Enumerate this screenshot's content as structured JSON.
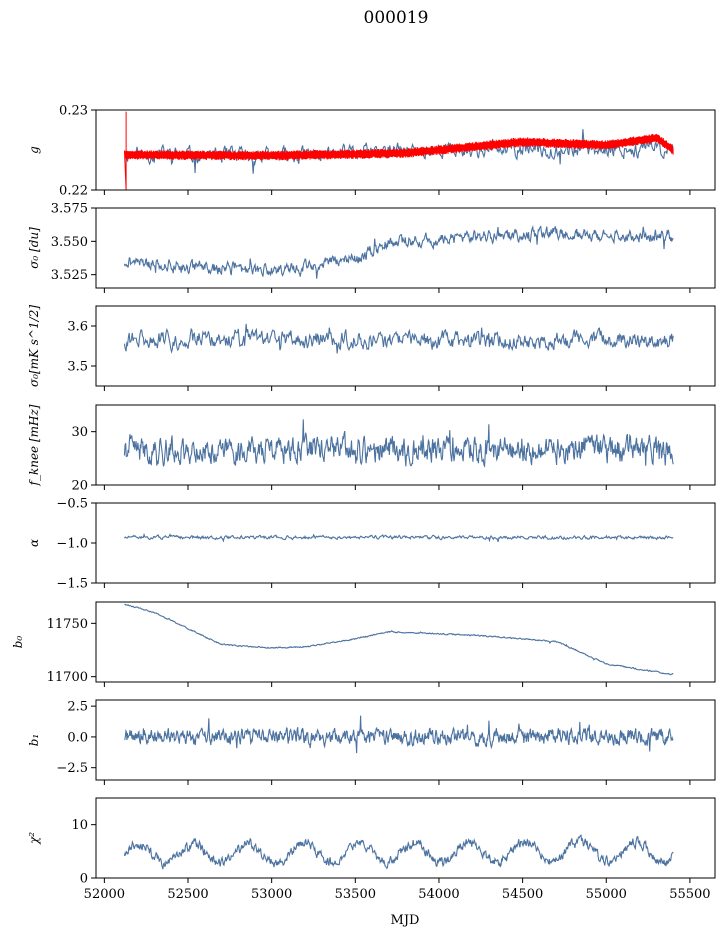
{
  "title": "000019",
  "chart_data": {
    "type": "line",
    "suptitle": "000019",
    "shared_x": {
      "label": "MJD",
      "xlim": [
        51950,
        55650
      ],
      "ticks": [
        52000,
        52500,
        53000,
        53500,
        54000,
        54500,
        55000,
        55500
      ],
      "data_range": [
        52120,
        55400
      ]
    },
    "panels": [
      {
        "ylabel": "g",
        "ylim": [
          0.22,
          0.23
        ],
        "yticks": [
          {
            "v": 0.22,
            "label": "0.22"
          },
          {
            "v": 0.23,
            "label": "0.23"
          }
        ],
        "series": [
          {
            "kind": "noise",
            "color": "#4c72a0",
            "base": [
              [
                52120,
                0.2245
              ],
              [
                53000,
                0.2242
              ],
              [
                54000,
                0.225
              ],
              [
                55400,
                0.2252
              ]
            ],
            "amp": 0.0013,
            "points": 700,
            "seed": 11
          },
          {
            "kind": "band",
            "color": "#ff0000",
            "base": [
              [
                52120,
                0.2244
              ],
              [
                53000,
                0.2243
              ],
              [
                53800,
                0.2246
              ],
              [
                54500,
                0.226
              ],
              [
                55000,
                0.2256
              ],
              [
                55300,
                0.2265
              ],
              [
                55400,
                0.225
              ]
            ],
            "amp": 0.0006,
            "points": 1400,
            "seed": 5,
            "spike": {
              "x": 52130,
              "y_top": 0.2298,
              "y_bottom": 0.22
            }
          }
        ]
      },
      {
        "ylabel": "σ₀ [du]",
        "ylim": [
          3.515,
          3.575
        ],
        "yticks": [
          {
            "v": 3.525,
            "label": "3.525"
          },
          {
            "v": 3.55,
            "label": "3.550"
          },
          {
            "v": 3.575,
            "label": "3.575"
          }
        ],
        "series": [
          {
            "kind": "noise",
            "color": "#4c72a0",
            "base": [
              [
                52120,
                3.535
              ],
              [
                52500,
                3.531
              ],
              [
                53000,
                3.528
              ],
              [
                53500,
                3.537
              ],
              [
                53700,
                3.549
              ],
              [
                54200,
                3.553
              ],
              [
                54700,
                3.556
              ],
              [
                55000,
                3.553
              ],
              [
                55400,
                3.555
              ]
            ],
            "amp": 0.006,
            "points": 900,
            "seed": 21
          }
        ]
      },
      {
        "ylabel": "σ₀[mK s^1/2]",
        "ylim": [
          3.45,
          3.65
        ],
        "yticks": [
          {
            "v": 3.5,
            "label": "3.5"
          },
          {
            "v": 3.6,
            "label": "3.6"
          }
        ],
        "series": [
          {
            "kind": "noise",
            "color": "#4c72a0",
            "base": [
              [
                52120,
                3.565
              ],
              [
                55400,
                3.565
              ]
            ],
            "amp": 0.03,
            "points": 700,
            "seed": 31
          }
        ]
      },
      {
        "ylabel": "f_knee [mHz]",
        "ylim": [
          20,
          35
        ],
        "yticks": [
          {
            "v": 20,
            "label": "20"
          },
          {
            "v": 30,
            "label": "30"
          }
        ],
        "series": [
          {
            "kind": "noise",
            "color": "#4c72a0",
            "base": [
              [
                52120,
                26.5
              ],
              [
                55400,
                26.5
              ]
            ],
            "amp": 3.2,
            "points": 900,
            "seed": 41
          }
        ]
      },
      {
        "ylabel": "α",
        "ylim": [
          -1.5,
          -0.5
        ],
        "yticks": [
          {
            "v": -1.5,
            "label": "−1.5"
          },
          {
            "v": -1.0,
            "label": "−1.0"
          },
          {
            "v": -0.5,
            "label": "−0.5"
          }
        ],
        "series": [
          {
            "kind": "noise",
            "color": "#4c72a0",
            "base": [
              [
                52120,
                -0.93
              ],
              [
                55400,
                -0.93
              ]
            ],
            "amp": 0.03,
            "points": 700,
            "seed": 51
          }
        ]
      },
      {
        "ylabel": "b₀",
        "ylim": [
          11695,
          11770
        ],
        "yticks": [
          {
            "v": 11700,
            "label": "11700"
          },
          {
            "v": 11750,
            "label": "11750"
          }
        ],
        "series": [
          {
            "kind": "noise",
            "color": "#4c72a0",
            "base": [
              [
                52120,
                11768
              ],
              [
                52300,
                11760
              ],
              [
                52700,
                11730
              ],
              [
                53000,
                11727
              ],
              [
                53200,
                11728
              ],
              [
                53450,
                11734
              ],
              [
                53700,
                11742
              ],
              [
                54200,
                11739
              ],
              [
                54700,
                11733
              ],
              [
                55000,
                11712
              ],
              [
                55400,
                11702
              ]
            ],
            "amp": 0.8,
            "points": 900,
            "seed": 61
          }
        ]
      },
      {
        "ylabel": "b₁",
        "ylim": [
          -3.5,
          3.0
        ],
        "yticks": [
          {
            "v": -2.5,
            "label": "−2.5"
          },
          {
            "v": 0.0,
            "label": "0.0"
          },
          {
            "v": 2.5,
            "label": "2.5"
          }
        ],
        "series": [
          {
            "kind": "noise",
            "color": "#4c72a0",
            "base": [
              [
                52120,
                0
              ],
              [
                55400,
                0
              ]
            ],
            "amp": 0.8,
            "points": 1100,
            "seed": 71
          }
        ]
      },
      {
        "ylabel": "χ²",
        "ylim": [
          0,
          15
        ],
        "yticks": [
          {
            "v": 0,
            "label": "0"
          },
          {
            "v": 10,
            "label": "10"
          }
        ],
        "series": [
          {
            "kind": "wave",
            "color": "#4c72a0",
            "base": [
              [
                52120,
                4.5
              ],
              [
                55400,
                5
              ]
            ],
            "amp": 1.3,
            "wave_amp": 1.8,
            "period": 330,
            "points": 900,
            "seed": 81
          }
        ]
      }
    ]
  }
}
